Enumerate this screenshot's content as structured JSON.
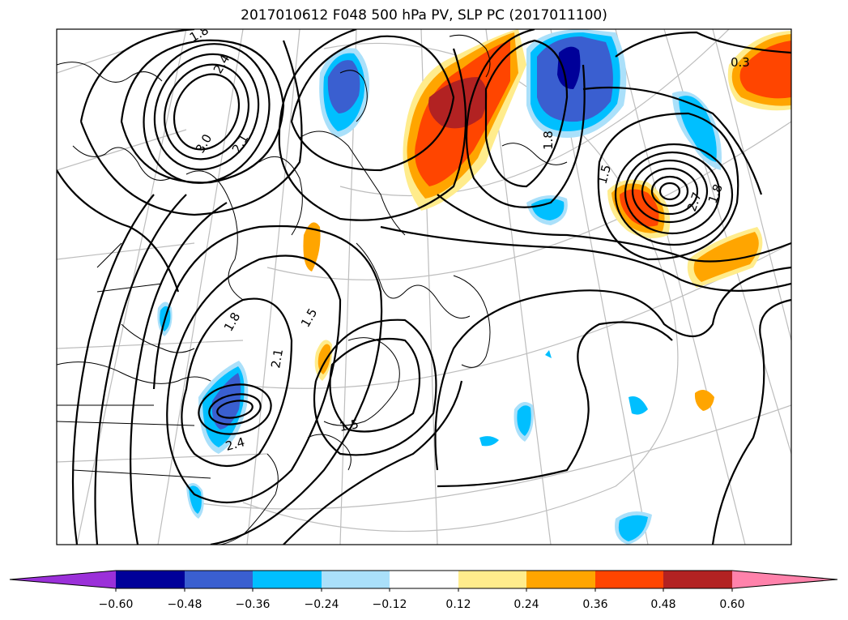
{
  "title": "2017010612 F048 500 hPa PV, SLP PC (2017011100)",
  "contour_labels": [
    "1.8",
    "2.4",
    "3.0",
    "2.1",
    "1.8",
    "1.5",
    "2.1",
    "2.4",
    "1.5",
    "0.3",
    "1.8",
    "1.5",
    "2.7",
    "1.8"
  ],
  "colorbar": {
    "colors": [
      "#9b30d9",
      "#000099",
      "#3a5fd0",
      "#00bfff",
      "#aae0fa",
      "#ffffff",
      "#ffec8c",
      "#ffa500",
      "#ff4500",
      "#b22222",
      "#ff82ab"
    ],
    "tick_labels": [
      "−0.60",
      "−0.48",
      "−0.36",
      "−0.24",
      "−0.12",
      "0.12",
      "0.24",
      "0.36",
      "0.48",
      "0.60"
    ]
  }
}
